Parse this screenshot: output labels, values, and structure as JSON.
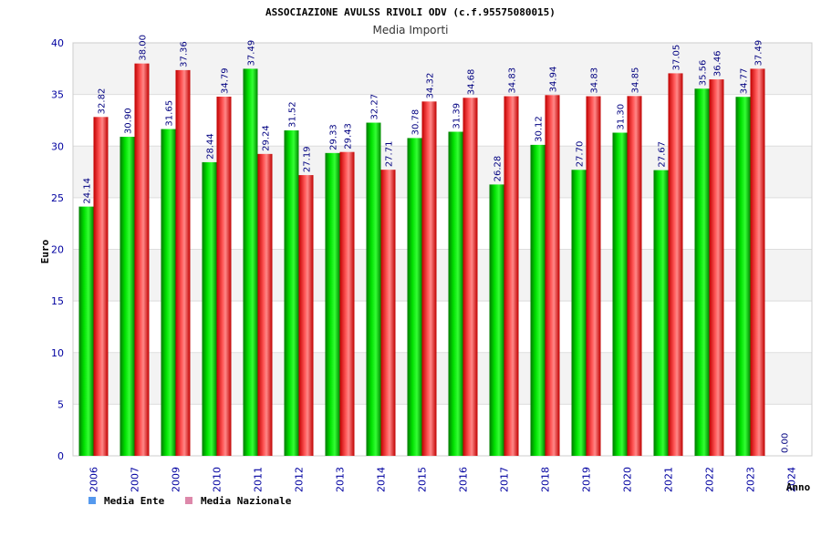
{
  "chart_data": {
    "type": "bar",
    "title": "ASSOCIAZIONE AVULSS RIVOLI ODV (c.f.95575080015)",
    "subtitle": "Media Importi",
    "xlabel": "Anno",
    "ylabel": "Euro",
    "ylim": [
      0,
      40
    ],
    "yticks": [
      0,
      5,
      10,
      15,
      20,
      25,
      30,
      35,
      40
    ],
    "grid": true,
    "legend_placement": "bottom-left",
    "categories": [
      "2006",
      "2007",
      "2009",
      "2010",
      "2011",
      "2012",
      "2013",
      "2014",
      "2015",
      "2016",
      "2017",
      "2018",
      "2019",
      "2020",
      "2021",
      "2022",
      "2023",
      "2024"
    ],
    "series": [
      {
        "name": "Media Ente",
        "color": "#00c000",
        "legend_color": "#5599ee",
        "values": [
          24.14,
          30.9,
          31.65,
          28.44,
          37.49,
          31.52,
          29.33,
          32.27,
          30.78,
          31.39,
          26.28,
          30.12,
          27.7,
          31.3,
          27.67,
          35.56,
          34.77,
          0.0
        ],
        "labels": [
          "24.14",
          "30.90",
          "31.65",
          "28.44",
          "37.49",
          "31.52",
          "29.33",
          "32.27",
          "30.78",
          "31.39",
          "26.28",
          "30.12",
          "27.70",
          "31.30",
          "27.67",
          "35.56",
          "34.77",
          "0.00"
        ]
      },
      {
        "name": "Media Nazionale",
        "color": "#e00000",
        "legend_color": "#dd88aa",
        "values": [
          32.82,
          38.0,
          37.36,
          34.79,
          29.24,
          27.19,
          29.43,
          27.71,
          34.32,
          34.68,
          34.83,
          34.94,
          34.83,
          34.85,
          37.05,
          36.46,
          37.49,
          null
        ],
        "labels": [
          "32.82",
          "38.00",
          "37.36",
          "34.79",
          "29.24",
          "27.19",
          "29.43",
          "27.71",
          "34.32",
          "34.68",
          "34.83",
          "34.94",
          "34.83",
          "34.85",
          "37.05",
          "36.46",
          "37.49",
          ""
        ]
      }
    ]
  }
}
